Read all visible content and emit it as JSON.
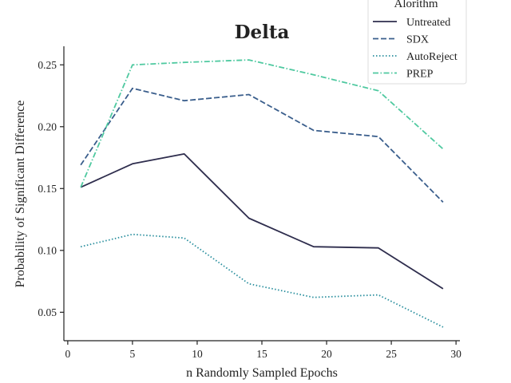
{
  "chart_data": {
    "type": "line",
    "title": "Delta",
    "xlabel": "n Randomly Sampled Epochs",
    "ylabel": "Probability of Significant Difference",
    "xlim": [
      -0.3,
      30.3
    ],
    "ylim": [
      0.027,
      0.265
    ],
    "xticks": [
      0,
      5,
      10,
      15,
      20,
      25,
      30
    ],
    "yticks": [
      0.05,
      0.1,
      0.15,
      0.2,
      0.25
    ],
    "xtick_labels": [
      "0",
      "5",
      "10",
      "15",
      "20",
      "25",
      "30"
    ],
    "ytick_labels": [
      "0.05",
      "0.10",
      "0.15",
      "0.20",
      "0.25"
    ],
    "grid": false,
    "legend_title": "Alorithm",
    "legend_position": "top-right",
    "series": [
      {
        "name": "Untreated",
        "color": "#2e2d4d",
        "dash": "solid",
        "x": [
          1,
          5,
          9,
          14,
          19,
          24,
          29
        ],
        "y": [
          0.151,
          0.17,
          0.178,
          0.126,
          0.103,
          0.102,
          0.069
        ]
      },
      {
        "name": "SDX",
        "color": "#3a5e8c",
        "dash": "dashed",
        "x": [
          1,
          5,
          9,
          14,
          19,
          24,
          29
        ],
        "y": [
          0.169,
          0.231,
          0.221,
          0.226,
          0.197,
          0.192,
          0.139
        ]
      },
      {
        "name": "AutoReject",
        "color": "#2a8f9e",
        "dash": "dotted",
        "x": [
          1,
          5,
          9,
          14,
          19,
          24,
          29
        ],
        "y": [
          0.103,
          0.113,
          0.11,
          0.073,
          0.062,
          0.064,
          0.038
        ]
      },
      {
        "name": "PREP",
        "color": "#4fc9a0",
        "dash": "dashdot",
        "x": [
          1,
          5,
          9,
          14,
          19,
          24,
          29
        ],
        "y": [
          0.151,
          0.25,
          0.252,
          0.254,
          0.242,
          0.229,
          0.182
        ]
      }
    ]
  }
}
